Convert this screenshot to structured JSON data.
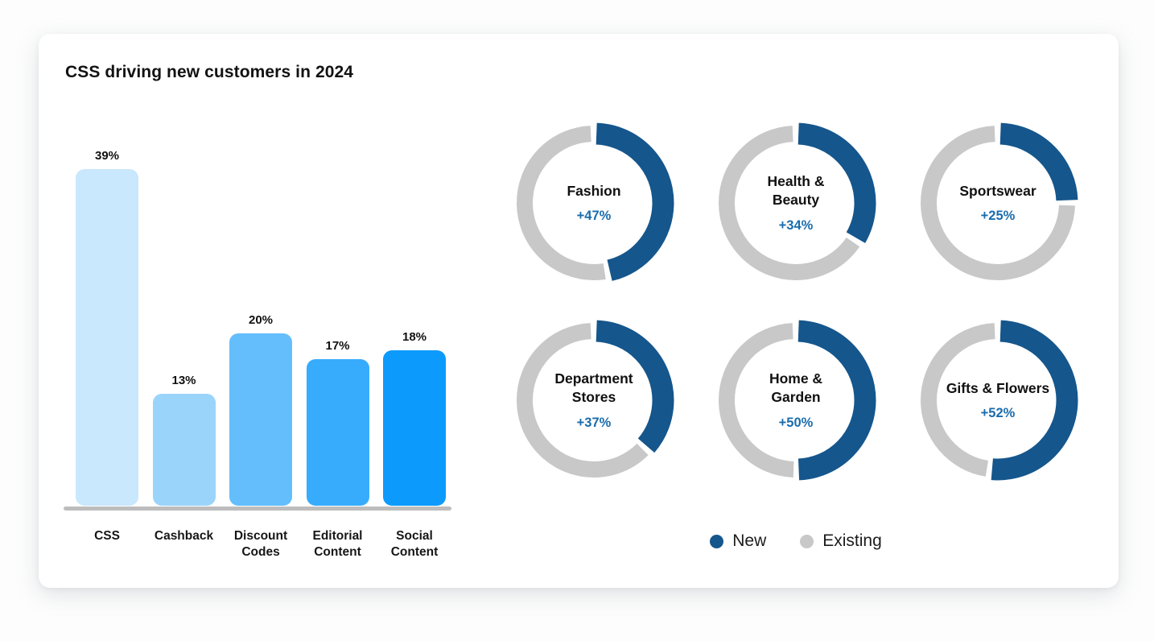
{
  "card": {
    "title": "CSS driving new customers in 2024"
  },
  "colors": {
    "new": "#15568C",
    "existing": "#C8C8C8",
    "pct_text": "#1A6CAD",
    "baseline": "#BDBDBD"
  },
  "legend": {
    "items": [
      {
        "label": "New",
        "color": "#15568C"
      },
      {
        "label": "Existing",
        "color": "#C8C8C8"
      }
    ]
  },
  "chart_data": [
    {
      "type": "bar",
      "title": "CSS driving new customers in 2024",
      "categories": [
        "CSS",
        "Cashback",
        "Discount Codes",
        "Editorial Content",
        "Social Content"
      ],
      "values": [
        39,
        13,
        20,
        17,
        18
      ],
      "value_suffix": "%",
      "value_labels": true,
      "bar_colors": [
        "#C9E7FD",
        "#9BD4FB",
        "#64BEFC",
        "#38ACFC",
        "#0C9AFD"
      ],
      "xlabel": "",
      "ylabel": "",
      "ylim": [
        0,
        39
      ],
      "grid": false,
      "axis_line": true
    },
    {
      "type": "pie",
      "variant": "donut-grid",
      "layout": "3x2",
      "series": [
        {
          "name": "Fashion",
          "label": "+47%",
          "new_pct": 47,
          "existing_pct": 53
        },
        {
          "name": "Health & Beauty",
          "label": "+34%",
          "new_pct": 34,
          "existing_pct": 66
        },
        {
          "name": "Sportswear",
          "label": "+25%",
          "new_pct": 25,
          "existing_pct": 75
        },
        {
          "name": "Department Stores",
          "label": "+37%",
          "new_pct": 37,
          "existing_pct": 63
        },
        {
          "name": "Home & Garden",
          "label": "+50%",
          "new_pct": 50,
          "existing_pct": 50
        },
        {
          "name": "Gifts & Flowers",
          "label": "+52%",
          "new_pct": 52,
          "existing_pct": 48
        }
      ],
      "legend_entries": [
        "New",
        "Existing"
      ],
      "legend_position": "bottom",
      "start_angle_deg": 0,
      "direction": "clockwise"
    }
  ]
}
